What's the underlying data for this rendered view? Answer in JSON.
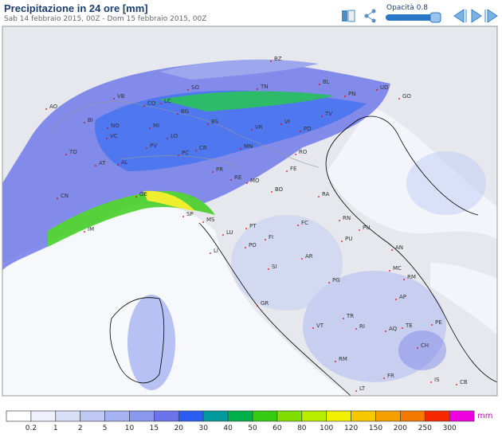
{
  "header": {
    "title": "Precipitazione in 24 ore [mm]",
    "subtitle": "Sab 14 febbraio 2015, 00Z - Dom 15 febbraio 2015, 00Z",
    "opacity_label": "Opacità 0.8"
  },
  "map": {
    "labels": [
      "BZ",
      "BL",
      "TN",
      "UD",
      "PN",
      "GO",
      "VB",
      "CO",
      "LC",
      "SO",
      "BG",
      "BS",
      "VI",
      "TV",
      "VR",
      "PD",
      "BI",
      "AO",
      "NO",
      "MI",
      "LO",
      "VC",
      "TO",
      "PV",
      "AT",
      "AL",
      "PC",
      "CR",
      "MN",
      "RO",
      "PR",
      "FE",
      "RE",
      "MO",
      "BO",
      "CN",
      "GE",
      "SP",
      "MS",
      "RA",
      "FC",
      "RN",
      "PU",
      "IM",
      "LU",
      "PT",
      "FI",
      "PO",
      "PU",
      "LI",
      "AN",
      "AR",
      "SI",
      "MC",
      "PG",
      "RM",
      "AP",
      "GR",
      "TR",
      "VT",
      "RI",
      "TE",
      "AQ",
      "PE",
      "CH",
      "RM",
      "IS",
      "CB",
      "FR",
      "LT"
    ]
  },
  "legend": {
    "unit": "mm",
    "labels": [
      "0.2",
      "1",
      "2",
      "5",
      "10",
      "15",
      "20",
      "30",
      "40",
      "50",
      "60",
      "80",
      "100",
      "120",
      "150",
      "200",
      "250",
      "300"
    ],
    "colors": [
      "#ffffff",
      "#eef0fc",
      "#d9def9",
      "#c0c9f5",
      "#a6b3f1",
      "#8a98ee",
      "#6b74ea",
      "#2a5cf0",
      "#00999c",
      "#00b04a",
      "#33cc11",
      "#80de00",
      "#b8ee00",
      "#f0f000",
      "#f5c800",
      "#f5a000",
      "#f57800",
      "#f52800",
      "#f000e0"
    ]
  }
}
